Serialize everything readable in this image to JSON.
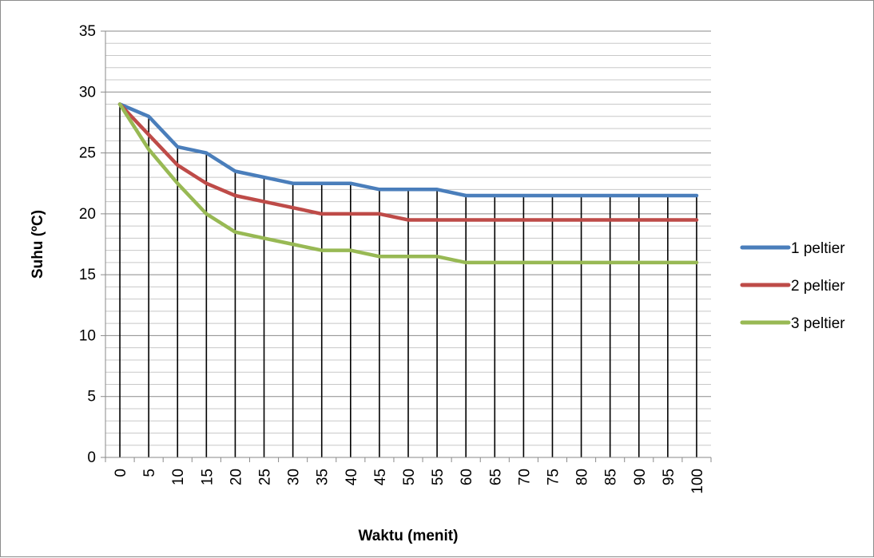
{
  "chart_data": {
    "type": "line",
    "title": "",
    "xlabel": "Waktu (menit)",
    "ylabel": "Suhu (ºC)",
    "ylim": [
      0,
      35
    ],
    "y_major_step": 5,
    "y_minor_step": 1,
    "grid": true,
    "legend_position": "right",
    "categories": [
      "0",
      "5",
      "10",
      "15",
      "20",
      "25",
      "30",
      "35",
      "40",
      "45",
      "50",
      "55",
      "60",
      "65",
      "70",
      "75",
      "80",
      "85",
      "90",
      "95",
      "100"
    ],
    "series": [
      {
        "name": "1 peltier",
        "color": "#4a7ebb",
        "values": [
          29,
          28,
          25.5,
          25,
          23.5,
          23,
          22.5,
          22.5,
          22.5,
          22,
          22,
          22,
          21.5,
          21.5,
          21.5,
          21.5,
          21.5,
          21.5,
          21.5,
          21.5,
          21.5
        ]
      },
      {
        "name": "2 peltier",
        "color": "#be4b48",
        "values": [
          29,
          26.5,
          24,
          22.5,
          21.5,
          21,
          20.5,
          20,
          20,
          20,
          19.5,
          19.5,
          19.5,
          19.5,
          19.5,
          19.5,
          19.5,
          19.5,
          19.5,
          19.5,
          19.5
        ]
      },
      {
        "name": "3 peltier",
        "color": "#98b954",
        "values": [
          29,
          25.3,
          22.5,
          20,
          18.5,
          18,
          17.5,
          17,
          17,
          16.5,
          16.5,
          16.5,
          16,
          16,
          16,
          16,
          16,
          16,
          16,
          16,
          16
        ]
      }
    ]
  }
}
